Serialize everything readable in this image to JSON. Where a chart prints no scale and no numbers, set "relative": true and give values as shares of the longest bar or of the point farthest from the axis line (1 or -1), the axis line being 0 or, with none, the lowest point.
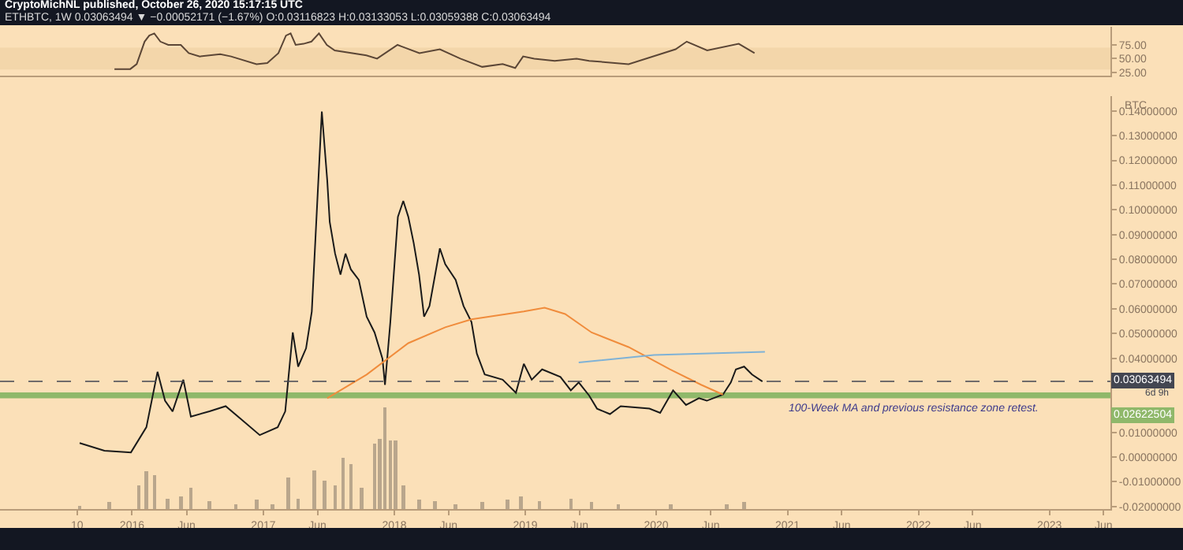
{
  "chart_data": [
    {
      "type": "line",
      "title": "CryptoMichNL published, October 26, 2020 15:17:15 UTC",
      "subtitle": "ETHBTC, 1W 0.03063494 ▼ −0.00052171 (−1.67%) O:0.03116823 H:0.03133053 L:0.03059388 C:0.03063494",
      "x": [
        "2015-11-13",
        "2015-12-27",
        "2016-01-14",
        "2016-02-05",
        "2016-02-18",
        "2016-03-03",
        "2016-03-20",
        "2016-04-11",
        "2016-05-16",
        "2016-06-07",
        "2016-07-08",
        "2016-09-03",
        "2016-10-03",
        "2016-12-13",
        "2017-01-12",
        "2017-02-12",
        "2017-03-05",
        "2017-03-18",
        "2017-04-01",
        "2017-04-23",
        "2017-05-15",
        "2017-06-05",
        "2017-06-27",
        "2017-07-19",
        "2017-10-15",
        "2017-11-14",
        "2018-01-10",
        "2018-03-12",
        "2018-05-08",
        "2018-07-04",
        "2018-09-03",
        "2018-10-30",
        "2018-12-04",
        "2018-12-26",
        "2019-01-26",
        "2019-03-24",
        "2019-05-24",
        "2019-06-28",
        "2019-10-16",
        "2020-02-24",
        "2020-03-26",
        "2020-05-22",
        "2020-08-18",
        "2020-10-01"
      ],
      "values": [
        31,
        31,
        40,
        81,
        92,
        96,
        81,
        75,
        75,
        60,
        54,
        58,
        54,
        40,
        42,
        60,
        92,
        96,
        75,
        77,
        81,
        96,
        75,
        65,
        56,
        50,
        75,
        60,
        67,
        50,
        35,
        40,
        33,
        54,
        50,
        46,
        50,
        46,
        40,
        67,
        81,
        65,
        77,
        60
      ],
      "color": "#5b4636",
      "xlim": [
        "2014-12-29",
        "2023-06-20"
      ],
      "ylim": [
        19,
        108
      ],
      "yticks": [
        {
          "value": 25,
          "label": "25.00"
        },
        {
          "value": 50,
          "label": "50.00"
        },
        {
          "value": 75,
          "label": "75.00"
        }
      ],
      "bands": [
        {
          "axis": "y",
          "from": 30,
          "to": 70,
          "color": "#efcfa0"
        }
      ],
      "tick_labels": "y"
    },
    {
      "type": "line",
      "ylabel": "BTC",
      "xlim": [
        "2014-12-29",
        "2023-06-20"
      ],
      "ylim": [
        -0.021,
        0.146
      ],
      "xticks": [
        {
          "value": "2015-08-01",
          "label": "10"
        },
        {
          "value": "2016-01-01",
          "label": "2016"
        },
        {
          "value": "2016-06-01",
          "label": "Jun"
        },
        {
          "value": "2017-01-01",
          "label": "2017"
        },
        {
          "value": "2017-06-01",
          "label": "Jun"
        },
        {
          "value": "2018-01-01",
          "label": "2018"
        },
        {
          "value": "2018-06-01",
          "label": "Jun"
        },
        {
          "value": "2019-01-01",
          "label": "2019"
        },
        {
          "value": "2019-06-01",
          "label": "Jun"
        },
        {
          "value": "2020-01-01",
          "label": "2020"
        },
        {
          "value": "2020-06-01",
          "label": "Jun"
        },
        {
          "value": "2021-01-01",
          "label": "2021"
        },
        {
          "value": "2021-06-01",
          "label": "Jun"
        },
        {
          "value": "2022-01-01",
          "label": "2022"
        },
        {
          "value": "2022-06-01",
          "label": "Jun"
        },
        {
          "value": "2023-01-01",
          "label": "2023"
        },
        {
          "value": "2023-06-01",
          "label": "Jun"
        }
      ],
      "yticks": [
        {
          "value": -0.02,
          "label": "-0.02000000"
        },
        {
          "value": -0.01,
          "label": "-0.01000000"
        },
        {
          "value": 0,
          "label": "0.00000000"
        },
        {
          "value": 0.01,
          "label": "0.01000000"
        },
        {
          "value": 0.04,
          "label": "0.04000000"
        },
        {
          "value": 0.05,
          "label": "0.05000000"
        },
        {
          "value": 0.06,
          "label": "0.06000000"
        },
        {
          "value": 0.07,
          "label": "0.07000000"
        },
        {
          "value": 0.08,
          "label": "0.08000000"
        },
        {
          "value": 0.09,
          "label": "0.09000000"
        },
        {
          "value": 0.1,
          "label": "0.10000000"
        },
        {
          "value": 0.11,
          "label": "0.11000000"
        },
        {
          "value": 0.12,
          "label": "0.12000000"
        },
        {
          "value": 0.13,
          "label": "0.13000000"
        },
        {
          "value": 0.14,
          "label": "0.14000000"
        }
      ],
      "series": [
        {
          "color": "#1a1a1a",
          "x": [
            "2015-08-08",
            "2015-10-16",
            "2015-12-29",
            "2016-02-10",
            "2016-03-12",
            "2016-04-02",
            "2016-04-23",
            "2016-05-23",
            "2016-06-13",
            "2016-08-04",
            "2016-09-18",
            "2016-10-31",
            "2016-12-22",
            "2017-02-10",
            "2017-03-03",
            "2017-03-24",
            "2017-04-08",
            "2017-04-30",
            "2017-05-16",
            "2017-05-30",
            "2017-06-13",
            "2017-06-28",
            "2017-07-05",
            "2017-07-20",
            "2017-08-04",
            "2017-08-18",
            "2017-09-02",
            "2017-09-24",
            "2017-10-16",
            "2017-11-07",
            "2017-11-29",
            "2017-12-06",
            "2017-12-21",
            "2018-01-11",
            "2018-01-26",
            "2018-02-09",
            "2018-02-24",
            "2018-03-11",
            "2018-03-25",
            "2018-04-09",
            "2018-05-08",
            "2018-05-23",
            "2018-06-21",
            "2018-07-13",
            "2018-08-04",
            "2018-08-19",
            "2018-09-10",
            "2018-10-30",
            "2018-12-06",
            "2018-12-28",
            "2019-01-19",
            "2019-02-17",
            "2019-04-09",
            "2019-05-08",
            "2019-05-30",
            "2019-06-28",
            "2019-07-20",
            "2019-08-25",
            "2019-09-24",
            "2019-12-13",
            "2020-01-12",
            "2020-02-17",
            "2020-03-24",
            "2020-04-29",
            "2020-05-21",
            "2020-07-05",
            "2020-07-27",
            "2020-08-10",
            "2020-09-02",
            "2020-09-24",
            "2020-10-23"
          ],
          "values": [
            0.0057,
            0.0026,
            0.0019,
            0.0121,
            0.0345,
            0.0228,
            0.0185,
            0.0313,
            0.0164,
            0.0185,
            0.0206,
            0.0153,
            0.0089,
            0.0121,
            0.0185,
            0.0504,
            0.0366,
            0.044,
            0.0589,
            0.0994,
            0.1398,
            0.1121,
            0.0951,
            0.0823,
            0.0738,
            0.0823,
            0.0759,
            0.0717,
            0.0568,
            0.0504,
            0.0398,
            0.0292,
            0.0547,
            0.0972,
            0.1036,
            0.0972,
            0.0866,
            0.0738,
            0.0568,
            0.0611,
            0.0844,
            0.078,
            0.0717,
            0.0611,
            0.0547,
            0.0419,
            0.0334,
            0.0313,
            0.026,
            0.0377,
            0.0313,
            0.0355,
            0.0324,
            0.027,
            0.0302,
            0.0249,
            0.0196,
            0.0174,
            0.0206,
            0.0196,
            0.0179,
            0.027,
            0.0211,
            0.0238,
            0.0228,
            0.0253,
            0.0302,
            0.0355,
            0.0366,
            0.0334,
            0.0306
          ]
        },
        {
          "color": "#f08c3c",
          "x": [
            "2017-06-28",
            "2017-10-16",
            "2018-02-09",
            "2018-05-23",
            "2018-08-04",
            "2018-12-28",
            "2019-02-24",
            "2019-04-22",
            "2019-07-05",
            "2019-10-16",
            "2020-02-08",
            "2020-05-06",
            "2020-07-05"
          ],
          "values": [
            0.0238,
            0.0334,
            0.0461,
            0.0525,
            0.0557,
            0.0589,
            0.0604,
            0.0579,
            0.0504,
            0.0445,
            0.0355,
            0.0292,
            0.0253
          ]
        },
        {
          "color": "#7fb2d6",
          "x": [
            "2019-05-30",
            "2019-12-26",
            "2020-10-30"
          ],
          "values": [
            0.0383,
            0.0413,
            0.0426
          ]
        }
      ],
      "ref_lines": [
        {
          "axis": "y",
          "value": 0.03063494,
          "label": "0.03063494",
          "color": "#434651",
          "line_style": "dashed"
        }
      ],
      "bands": [
        {
          "axis": "y",
          "from": 0.0238,
          "to": 0.0262,
          "label": "0.02622504",
          "color": "#8fb86a"
        }
      ],
      "annotations": [
        "100-Week MA and previous resistance zone retest.",
        "6d 9h"
      ]
    },
    {
      "type": "bar",
      "relative": true,
      "color": "#b9a68c",
      "tick_labels": false,
      "xlim": [
        "2014-12-29",
        "2023-06-20"
      ],
      "x": [
        "2015-08-08",
        "2015-10-30",
        "2016-01-20",
        "2016-02-10",
        "2016-03-04",
        "2016-04-09",
        "2016-05-16",
        "2016-06-13",
        "2016-08-04",
        "2016-10-16",
        "2016-12-13",
        "2017-01-26",
        "2017-03-11",
        "2017-04-08",
        "2017-05-23",
        "2017-06-20",
        "2017-07-20",
        "2017-08-11",
        "2017-09-02",
        "2017-10-02",
        "2017-11-07",
        "2017-11-21",
        "2017-12-06",
        "2017-12-21",
        "2018-01-04",
        "2018-01-26",
        "2018-03-11",
        "2018-04-24",
        "2018-06-21",
        "2018-09-03",
        "2018-11-13",
        "2018-12-20",
        "2019-02-10",
        "2019-05-08",
        "2019-07-05",
        "2019-09-17",
        "2020-02-10",
        "2020-07-16",
        "2020-09-02"
      ],
      "values": [
        0.03,
        0.07,
        0.23,
        0.37,
        0.33,
        0.1,
        0.12,
        0.21,
        0.08,
        0.05,
        0.09,
        0.05,
        0.31,
        0.1,
        0.38,
        0.28,
        0.23,
        0.5,
        0.44,
        0.21,
        0.64,
        0.69,
        1,
        0.67,
        0.67,
        0.23,
        0.09,
        0.08,
        0.05,
        0.07,
        0.09,
        0.12,
        0.08,
        0.1,
        0.07,
        0.05,
        0.05,
        0.05,
        0.07
      ]
    }
  ]
}
